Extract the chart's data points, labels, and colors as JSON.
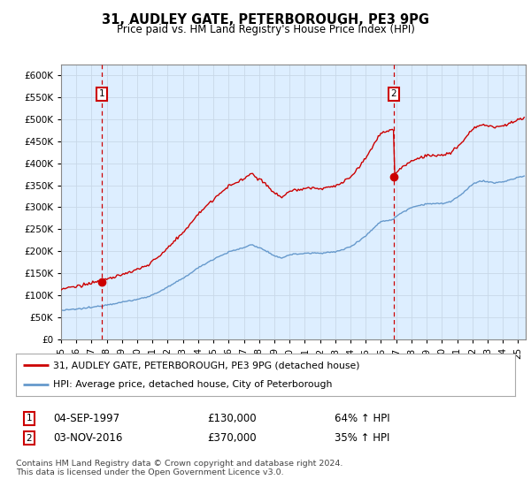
{
  "title1": "31, AUDLEY GATE, PETERBOROUGH, PE3 9PG",
  "title2": "Price paid vs. HM Land Registry's House Price Index (HPI)",
  "ytick_values": [
    0,
    50000,
    100000,
    150000,
    200000,
    250000,
    300000,
    350000,
    400000,
    450000,
    500000,
    550000,
    600000
  ],
  "ylim": [
    0,
    625000
  ],
  "xlim_start": 1995.0,
  "xlim_end": 2025.5,
  "xtick_years": [
    1995,
    1996,
    1997,
    1998,
    1999,
    2000,
    2001,
    2002,
    2003,
    2004,
    2005,
    2006,
    2007,
    2008,
    2009,
    2010,
    2011,
    2012,
    2013,
    2014,
    2015,
    2016,
    2017,
    2018,
    2019,
    2020,
    2021,
    2022,
    2023,
    2024,
    2025
  ],
  "transaction1_date": 1997.67,
  "transaction1_price": 130000,
  "transaction2_date": 2016.84,
  "transaction2_price": 370000,
  "red_line_color": "#cc0000",
  "blue_line_color": "#6699cc",
  "grid_color": "#c8d8e8",
  "plot_bg_color": "#ddeeff",
  "legend_line1": "31, AUDLEY GATE, PETERBOROUGH, PE3 9PG (detached house)",
  "legend_line2": "HPI: Average price, detached house, City of Peterborough",
  "note1_date": "04-SEP-1997",
  "note1_price": "£130,000",
  "note1_hpi": "64% ↑ HPI",
  "note2_date": "03-NOV-2016",
  "note2_price": "£370,000",
  "note2_hpi": "35% ↑ HPI",
  "footer": "Contains HM Land Registry data © Crown copyright and database right 2024.\nThis data is licensed under the Open Government Licence v3.0."
}
